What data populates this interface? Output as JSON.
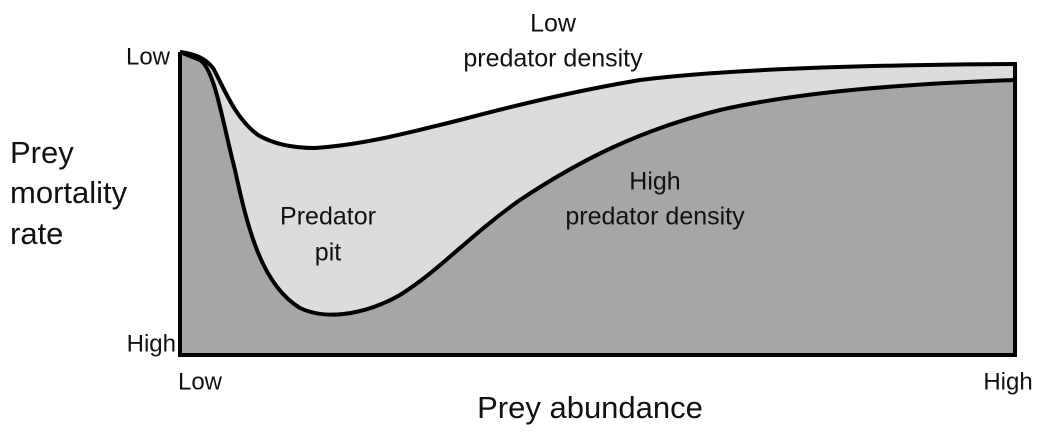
{
  "y_axis": {
    "label_lines": [
      "Prey",
      "mortality",
      "rate"
    ],
    "top": "Low",
    "bottom": "High"
  },
  "x_axis": {
    "label": "Prey abundance",
    "left": "Low",
    "right": "High"
  },
  "regions": {
    "low_density": [
      "Low",
      "predator density"
    ],
    "high_density": [
      "High",
      "predator density"
    ],
    "pit": [
      "Predator",
      "pit"
    ]
  }
}
